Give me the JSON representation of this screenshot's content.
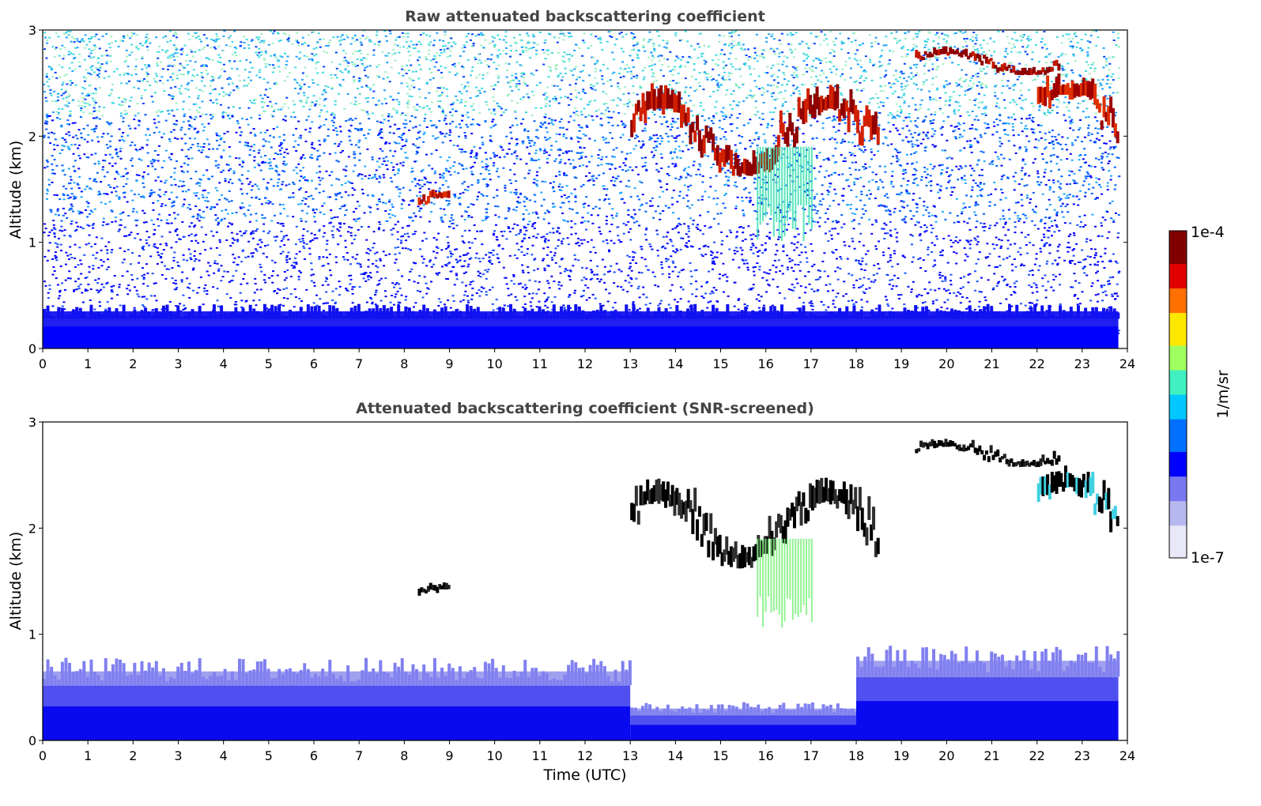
{
  "chart_data": [
    {
      "type": "heatmap",
      "title": "Raw attenuated backscattering coefficient",
      "xlabel": "",
      "ylabel": "Altitude (km)",
      "xlim": [
        0,
        24
      ],
      "ylim": [
        0,
        3
      ],
      "xticks": [
        "0",
        "1",
        "2",
        "3",
        "4",
        "5",
        "6",
        "7",
        "8",
        "9",
        "10",
        "11",
        "12",
        "13",
        "14",
        "15",
        "16",
        "17",
        "18",
        "19",
        "20",
        "21",
        "22",
        "23",
        "24"
      ],
      "yticks": [
        "0",
        "1",
        "2",
        "3"
      ],
      "features": [
        {
          "kind": "boundary_layer",
          "time": [
            0,
            23.8
          ],
          "top_km": 0.35
        },
        {
          "kind": "noise_speckle",
          "time": [
            0,
            23.8
          ],
          "alt": [
            0,
            3
          ]
        },
        {
          "kind": "cloud",
          "time": [
            8.3,
            9.0
          ],
          "alt": [
            1.25,
            1.5
          ]
        },
        {
          "kind": "cloud_layer",
          "time": [
            13.0,
            18.5
          ],
          "alt": [
            1.7,
            2.5
          ]
        },
        {
          "kind": "cloud_layer",
          "time": [
            19.3,
            22.5
          ],
          "alt": [
            2.6,
            2.85
          ]
        },
        {
          "kind": "cloud_layer",
          "time": [
            22.0,
            23.8
          ],
          "alt": [
            1.9,
            2.6
          ]
        },
        {
          "kind": "virga",
          "time": [
            15.8,
            17.0
          ],
          "alt": [
            1.0,
            1.9
          ]
        }
      ]
    },
    {
      "type": "heatmap",
      "title": "Attenuated backscattering coefficient (SNR-screened)",
      "xlabel": "Time (UTC)",
      "ylabel": "Altitude (km)",
      "xlim": [
        0,
        24
      ],
      "ylim": [
        0,
        3
      ],
      "xticks": [
        "0",
        "1",
        "2",
        "3",
        "4",
        "5",
        "6",
        "7",
        "8",
        "9",
        "10",
        "11",
        "12",
        "13",
        "14",
        "15",
        "16",
        "17",
        "18",
        "19",
        "20",
        "21",
        "22",
        "23",
        "24"
      ],
      "yticks": [
        "0",
        "1",
        "2",
        "3"
      ],
      "features": [
        {
          "kind": "boundary_layer",
          "time": [
            0,
            13.0
          ],
          "top_km": 0.65
        },
        {
          "kind": "boundary_layer",
          "time": [
            13.0,
            18.0
          ],
          "top_km": 0.3
        },
        {
          "kind": "boundary_layer",
          "time": [
            18.0,
            23.8
          ],
          "top_km": 0.75
        },
        {
          "kind": "cloud",
          "time": [
            8.3,
            9.0
          ],
          "alt": [
            1.25,
            1.5
          ]
        },
        {
          "kind": "cloud_layer",
          "time": [
            13.0,
            18.5
          ],
          "alt": [
            1.7,
            2.5
          ]
        },
        {
          "kind": "cloud_layer",
          "time": [
            19.3,
            22.5
          ],
          "alt": [
            2.6,
            2.85
          ]
        },
        {
          "kind": "cloud_layer",
          "time": [
            22.0,
            23.8
          ],
          "alt": [
            1.9,
            2.6
          ]
        },
        {
          "kind": "virga",
          "time": [
            15.8,
            17.0
          ],
          "alt": [
            1.0,
            1.9
          ]
        }
      ]
    }
  ],
  "colorbar": {
    "label": "1/m/sr",
    "max_label": "1e-4",
    "min_label": "1e-7",
    "scale": "log",
    "range": [
      1e-07,
      0.0001
    ],
    "colormap": "jet",
    "colors": [
      "#e8e8f8",
      "#b8b8f0",
      "#7878f0",
      "#0000ff",
      "#0070ff",
      "#00c8ff",
      "#40f0c0",
      "#a0ff60",
      "#ffe800",
      "#ff7000",
      "#e00000",
      "#800000"
    ]
  }
}
